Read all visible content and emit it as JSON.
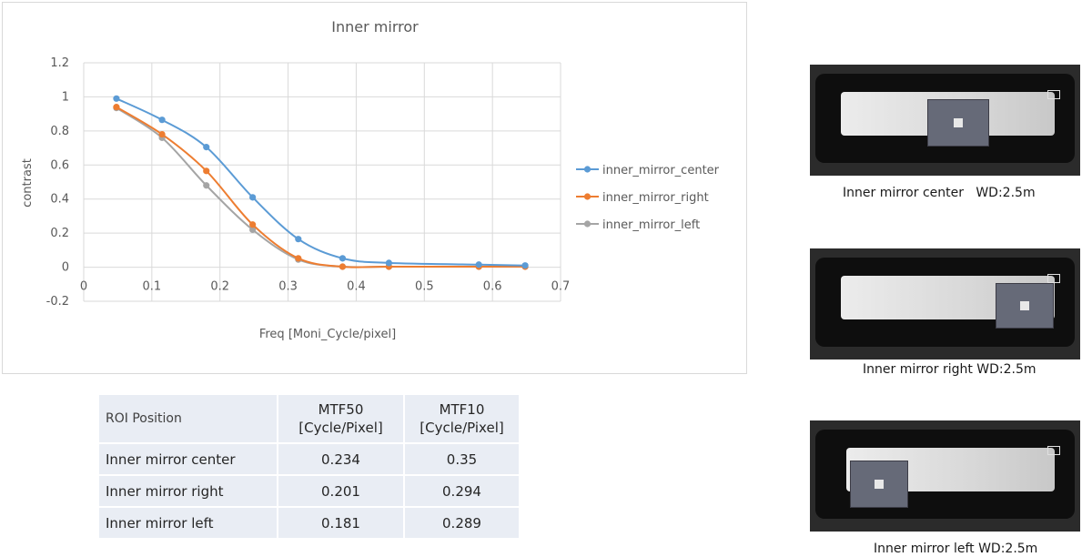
{
  "chart_data": {
    "type": "line",
    "title": "Inner mirror",
    "xlabel": "Freq [Moni_Cycle/pixel]",
    "ylabel": "contrast",
    "xlim": [
      0,
      0.7
    ],
    "ylim": [
      -0.2,
      1.2
    ],
    "x_ticks": [
      "0",
      "0.1",
      "0.2",
      "0.3",
      "0.4",
      "0.5",
      "0.6",
      "0.7"
    ],
    "y_ticks": [
      "-0.2",
      "0",
      "0.2",
      "0.4",
      "0.6",
      "0.8",
      "1",
      "1.2"
    ],
    "grid": true,
    "legend_position": "right",
    "series": [
      {
        "name": "inner_mirror_center",
        "color": "#5b9bd5",
        "x": [
          0.048,
          0.115,
          0.18,
          0.248,
          0.315,
          0.38,
          0.448,
          0.58,
          0.648
        ],
        "y": [
          0.99,
          0.865,
          0.705,
          0.41,
          0.165,
          0.052,
          0.025,
          0.015,
          0.01
        ]
      },
      {
        "name": "inner_mirror_right",
        "color": "#ed7d31",
        "x": [
          0.048,
          0.115,
          0.18,
          0.248,
          0.315,
          0.38,
          0.448,
          0.58,
          0.648
        ],
        "y": [
          0.94,
          0.78,
          0.565,
          0.25,
          0.052,
          0.003,
          0.003,
          0.003,
          0.003
        ]
      },
      {
        "name": "inner_mirror_left",
        "color": "#a5a5a5",
        "x": [
          0.048,
          0.115,
          0.18,
          0.248,
          0.315,
          0.38,
          0.448,
          0.58,
          0.648
        ],
        "y": [
          0.935,
          0.76,
          0.48,
          0.22,
          0.045,
          0.003,
          0.003,
          0.003,
          0.003
        ]
      }
    ]
  },
  "table": {
    "headers": [
      "ROI Position",
      "MTF50",
      "[Cycle/Pixel]",
      "MTF10",
      "[Cycle/Pixel]"
    ],
    "rows": [
      [
        "Inner mirror center",
        "0.234",
        "0.35"
      ],
      [
        "Inner mirror right",
        "0.201",
        "0.294"
      ],
      [
        "Inner mirror left",
        "0.181",
        "0.289"
      ]
    ]
  },
  "images": [
    {
      "caption": "Inner mirror center   WD:2.5m",
      "target_position": "center"
    },
    {
      "caption": "Inner mirror right WD:2.5m",
      "target_position": "right"
    },
    {
      "caption": "Inner mirror left WD:2.5m",
      "target_position": "left"
    }
  ]
}
